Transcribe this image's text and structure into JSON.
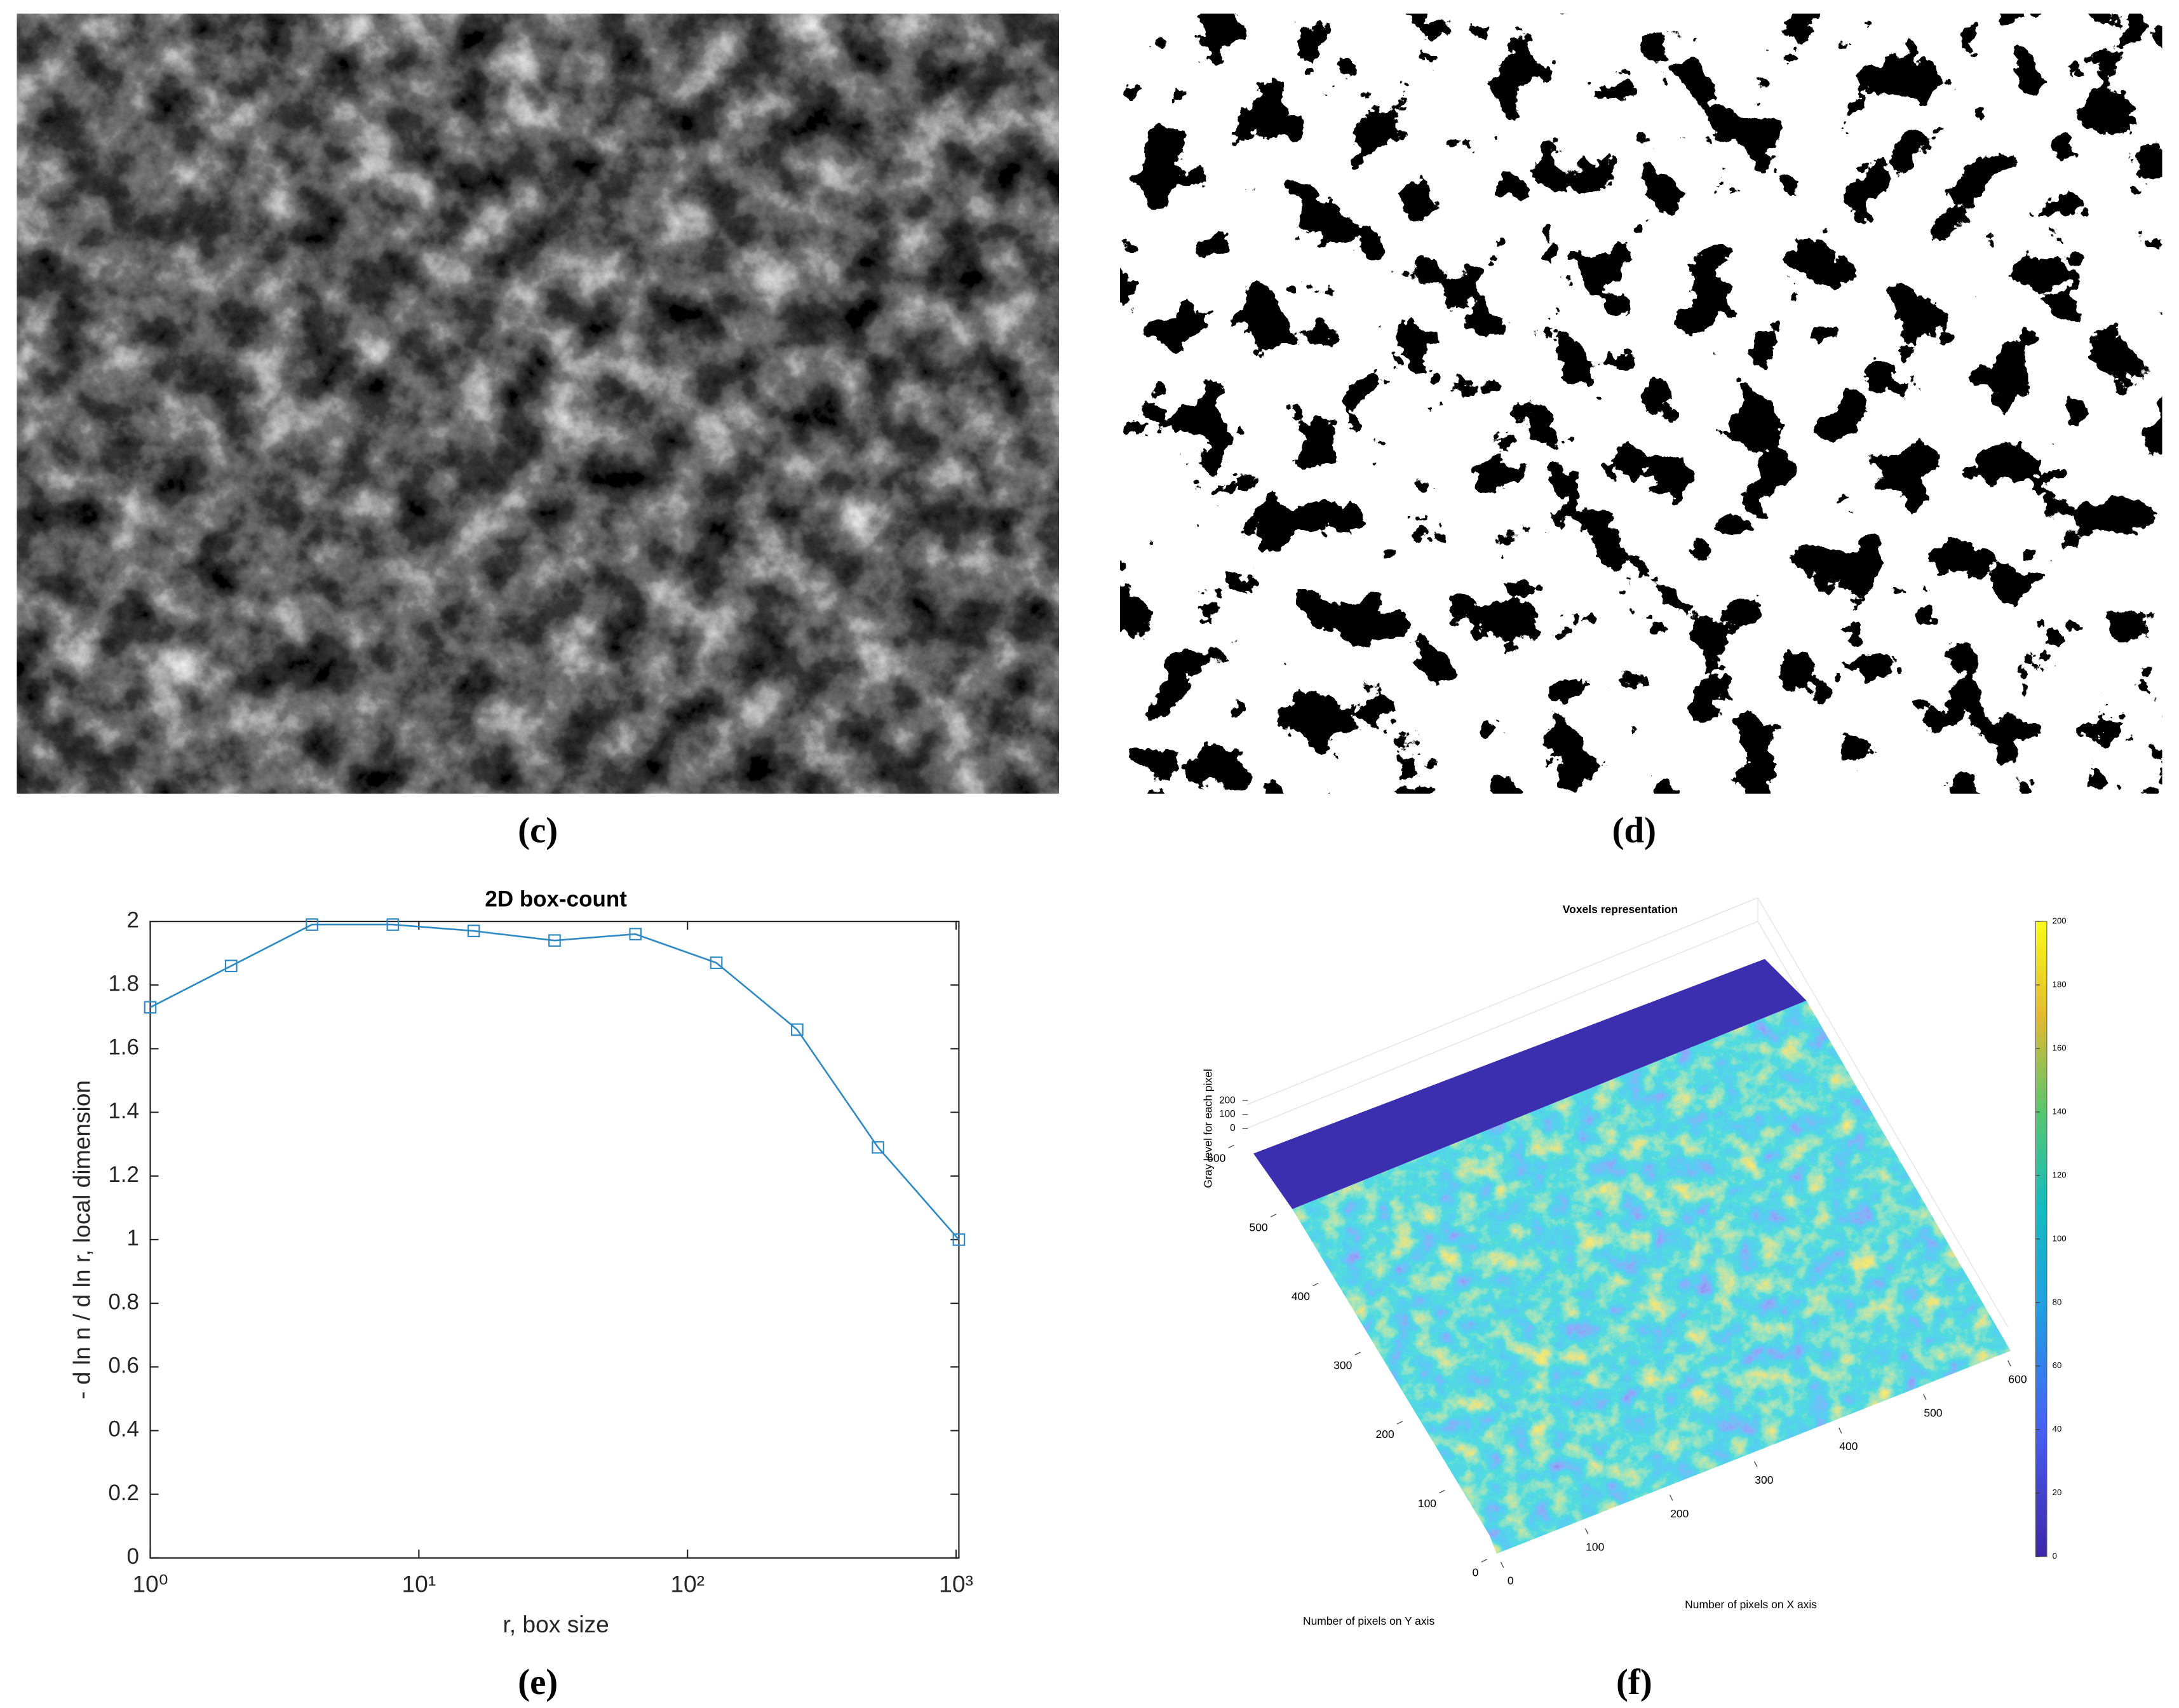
{
  "panels": {
    "c": {
      "label": "(c)"
    },
    "d": {
      "label": "(d)"
    },
    "e": {
      "label": "(e)"
    },
    "f": {
      "label": "(f)"
    }
  },
  "chart_data": [
    {
      "type": "line",
      "title": "2D box-count",
      "x_label": "r, box size",
      "y_label": "- d ln n / d ln r, local dimension",
      "x_scale": "log",
      "color": "#2f8ac4",
      "marker": "square",
      "x": [
        1,
        2,
        4,
        8,
        16,
        32,
        64,
        128,
        256,
        512,
        1024
      ],
      "values": [
        1.73,
        1.86,
        1.99,
        1.99,
        1.97,
        1.94,
        1.96,
        1.87,
        1.66,
        1.29,
        1.0
      ],
      "xlim": [
        1,
        1024
      ],
      "ylim": [
        0,
        2
      ],
      "xticks": [
        {
          "value": 1,
          "label": "10⁰"
        },
        {
          "value": 10,
          "label": "10¹"
        },
        {
          "value": 100,
          "label": "10²"
        },
        {
          "value": 1000,
          "label": "10³"
        }
      ],
      "yticks": [
        0,
        0.2,
        0.4,
        0.6,
        0.8,
        1,
        1.2,
        1.4,
        1.6,
        1.8,
        2
      ]
    },
    {
      "type": "surface",
      "title": "Voxels representation",
      "x_label": "Number of pixels on X axis",
      "y_label": "Number of pixels on Y axis",
      "z_label": "Gray level for each pixel",
      "xlim": [
        0,
        600
      ],
      "ylim": [
        0,
        600
      ],
      "zlim": [
        0,
        200
      ],
      "xticks": [
        0,
        100,
        200,
        300,
        400,
        500,
        600
      ],
      "yticks": [
        0,
        100,
        200,
        300,
        400,
        500,
        600
      ],
      "zticks": [
        0,
        100,
        200
      ],
      "clim": [
        0,
        200
      ],
      "colorbar_ticks": [
        0,
        20,
        40,
        60,
        80,
        100,
        120,
        140,
        160,
        180,
        200
      ]
    }
  ]
}
